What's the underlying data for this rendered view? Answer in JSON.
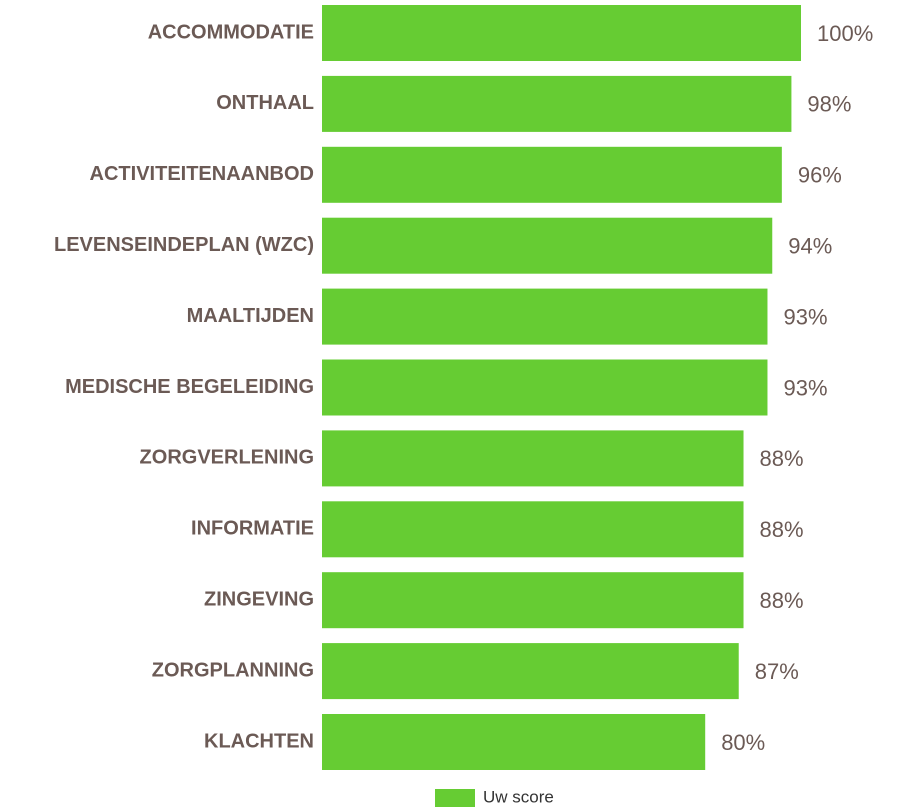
{
  "chart_data": {
    "type": "barh",
    "categories": [
      "ACCOMMODATIE",
      "ONTHAAL",
      "ACTIVITEITENAANBOD",
      "LEVENSEINDEPLAN (WZC)",
      "MAALTIJDEN",
      "MEDISCHE BEGELEIDING",
      "ZORGVERLENING",
      "INFORMATIE",
      "ZINGEVING",
      "ZORGPLANNING",
      "KLACHTEN"
    ],
    "series": [
      {
        "name": "Uw score",
        "color": "#66cc33",
        "values": [
          100,
          98,
          96,
          94,
          93,
          93,
          88,
          88,
          88,
          87,
          80
        ],
        "value_labels": [
          "100%",
          "98%",
          "96%",
          "94%",
          "93%",
          "93%",
          "88%",
          "88%",
          "88%",
          "87%",
          "80%"
        ]
      }
    ],
    "xlim": [
      0,
      100
    ],
    "legend": "bottom"
  }
}
